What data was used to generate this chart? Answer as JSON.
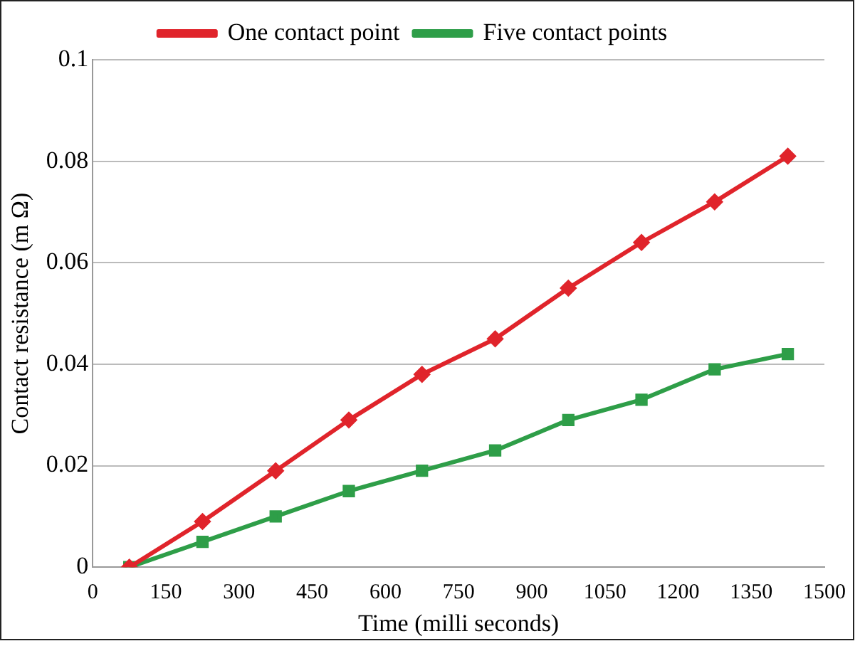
{
  "chart_data": {
    "type": "line",
    "xlabel": "Time (milli seconds)",
    "ylabel": "Contact resistance (m Ω)",
    "x": [
      75,
      225,
      375,
      525,
      675,
      825,
      975,
      1125,
      1275,
      1425
    ],
    "series": [
      {
        "name": "One contact point",
        "color": "#e0242b",
        "marker": "diamond",
        "values": [
          0,
          0.009,
          0.019,
          0.029,
          0.038,
          0.045,
          0.055,
          0.064,
          0.072,
          0.081
        ]
      },
      {
        "name": "Five contact points",
        "color": "#2e9e48",
        "marker": "square",
        "values": [
          0,
          0.005,
          0.01,
          0.015,
          0.019,
          0.023,
          0.029,
          0.033,
          0.039,
          0.042
        ]
      }
    ],
    "xlim": [
      0,
      1500
    ],
    "xticks": [
      0,
      150,
      300,
      450,
      600,
      750,
      900,
      1050,
      1200,
      1350,
      1500
    ],
    "ylim": [
      0,
      0.1
    ],
    "yticks": [
      0,
      0.02,
      0.04,
      0.06,
      0.08,
      0.1
    ],
    "grid": "y",
    "legend": "top"
  }
}
